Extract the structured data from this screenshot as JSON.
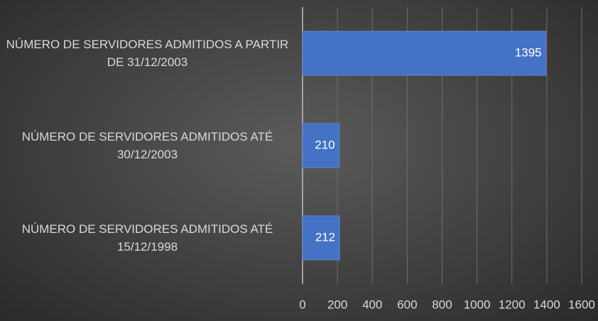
{
  "chart_data": {
    "type": "bar",
    "orientation": "horizontal",
    "categories": [
      "NÚMERO DE SERVIDORES ADMITIDOS A PARTIR DE 31/12/2003",
      "NÚMERO DE SERVIDORES ADMITIDOS ATÉ 30/12/2003",
      "NÚMERO DE SERVIDORES ADMITIDOS ATÉ 15/12/1998"
    ],
    "values": [
      1395,
      210,
      212
    ],
    "color": "#4472c4",
    "xlim": [
      0,
      1600
    ],
    "xticks": [
      0,
      200,
      400,
      600,
      800,
      1000,
      1200,
      1400,
      1600
    ],
    "grid": true
  }
}
